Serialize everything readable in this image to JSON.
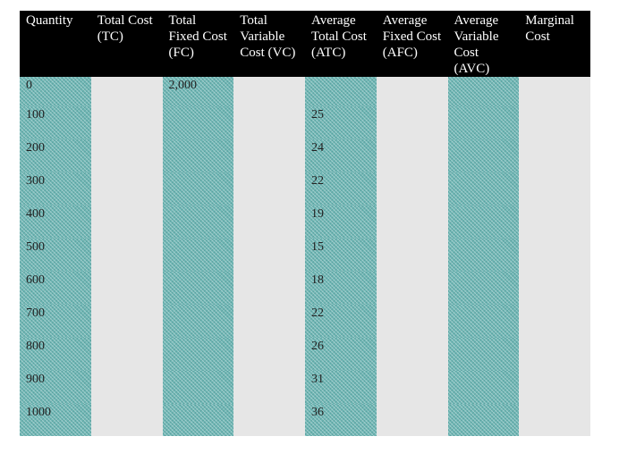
{
  "table": {
    "headers": [
      "Quantity",
      "Total Cost (TC)",
      "Total Fixed Cost (FC)",
      "Total Variable Cost (VC)",
      "Average Total Cost (ATC)",
      "Average Fixed Cost (AFC)",
      "Average Variable Cost (AVC)",
      "Marginal Cost"
    ],
    "rows": [
      [
        "0",
        "",
        "2,000",
        "",
        "",
        "",
        "",
        ""
      ],
      [
        "100",
        "",
        "",
        "",
        "25",
        "",
        "",
        ""
      ],
      [
        "200",
        "",
        "",
        "",
        "24",
        "",
        "",
        ""
      ],
      [
        "300",
        "",
        "",
        "",
        "22",
        "",
        "",
        ""
      ],
      [
        "400",
        "",
        "",
        "",
        "19",
        "",
        "",
        ""
      ],
      [
        "500",
        "",
        "",
        "",
        "15",
        "",
        "",
        ""
      ],
      [
        "600",
        "",
        "",
        "",
        "18",
        "",
        "",
        ""
      ],
      [
        "700",
        "",
        "",
        "",
        "22",
        "",
        "",
        ""
      ],
      [
        "800",
        "",
        "",
        "",
        "26",
        "",
        "",
        ""
      ],
      [
        "900",
        "",
        "",
        "",
        "31",
        "",
        "",
        ""
      ],
      [
        "1000",
        "",
        "",
        "",
        "36",
        "",
        "",
        ""
      ]
    ]
  },
  "colors": {
    "header_bg": "#000000",
    "header_text": "#ffffff",
    "teal_column": "#6fb6b4",
    "grey_column": "#e6e6e6"
  }
}
